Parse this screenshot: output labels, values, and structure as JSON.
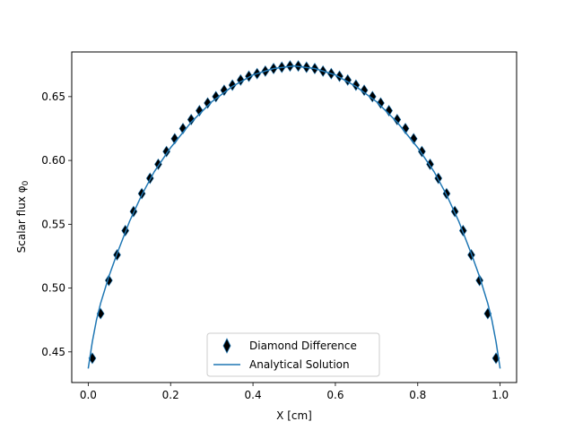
{
  "chart_data": {
    "type": "line",
    "xlabel": "X [cm]",
    "ylabel": "Scalar flux φ",
    "ylabel_subscript": "0",
    "xlim": [
      -0.04,
      1.04
    ],
    "ylim": [
      0.426,
      0.685
    ],
    "xticks": [
      0.0,
      0.2,
      0.4,
      0.6,
      0.8,
      1.0
    ],
    "xtick_labels": [
      "0.0",
      "0.2",
      "0.4",
      "0.6",
      "0.8",
      "1.0"
    ],
    "yticks": [
      0.45,
      0.5,
      0.55,
      0.6,
      0.65
    ],
    "ytick_labels": [
      "0.45",
      "0.50",
      "0.55",
      "0.60",
      "0.65"
    ],
    "legend_position": "lower center",
    "grid": false,
    "series": [
      {
        "name": "Diamond Difference",
        "kind": "scatter",
        "marker": "diamond",
        "color": "#000000",
        "edge_color": "#1f77b4",
        "x": [
          0.01,
          0.03,
          0.05,
          0.07,
          0.09,
          0.11,
          0.13,
          0.15,
          0.17,
          0.19,
          0.21,
          0.23,
          0.25,
          0.27,
          0.29,
          0.31,
          0.33,
          0.35,
          0.37,
          0.39,
          0.41,
          0.43,
          0.45,
          0.47,
          0.49,
          0.51,
          0.53,
          0.55,
          0.57,
          0.59,
          0.61,
          0.63,
          0.65,
          0.67,
          0.69,
          0.71,
          0.73,
          0.75,
          0.77,
          0.79,
          0.81,
          0.83,
          0.85,
          0.87,
          0.89,
          0.91,
          0.93,
          0.95,
          0.97,
          0.99
        ],
        "y": [
          0.445,
          0.48,
          0.506,
          0.526,
          0.545,
          0.56,
          0.574,
          0.586,
          0.597,
          0.607,
          0.617,
          0.625,
          0.632,
          0.639,
          0.645,
          0.65,
          0.655,
          0.659,
          0.663,
          0.666,
          0.668,
          0.67,
          0.672,
          0.673,
          0.674,
          0.674,
          0.673,
          0.672,
          0.67,
          0.668,
          0.666,
          0.663,
          0.659,
          0.655,
          0.65,
          0.645,
          0.639,
          0.632,
          0.625,
          0.617,
          0.607,
          0.597,
          0.586,
          0.574,
          0.56,
          0.545,
          0.526,
          0.506,
          0.48,
          0.445
        ]
      },
      {
        "name": "Analytical Solution",
        "kind": "line",
        "color": "#1f77b4",
        "x": [
          0.0,
          0.01,
          0.02,
          0.03,
          0.05,
          0.07,
          0.1,
          0.13,
          0.16,
          0.2,
          0.25,
          0.3,
          0.35,
          0.4,
          0.45,
          0.5,
          0.55,
          0.6,
          0.65,
          0.7,
          0.75,
          0.8,
          0.84,
          0.87,
          0.9,
          0.93,
          0.95,
          0.97,
          0.98,
          0.99,
          1.0
        ],
        "y": [
          0.437,
          0.458,
          0.475,
          0.488,
          0.509,
          0.527,
          0.552,
          0.573,
          0.591,
          0.61,
          0.63,
          0.646,
          0.658,
          0.667,
          0.672,
          0.674,
          0.672,
          0.667,
          0.658,
          0.646,
          0.63,
          0.61,
          0.591,
          0.573,
          0.552,
          0.527,
          0.509,
          0.488,
          0.475,
          0.458,
          0.437
        ]
      }
    ]
  }
}
